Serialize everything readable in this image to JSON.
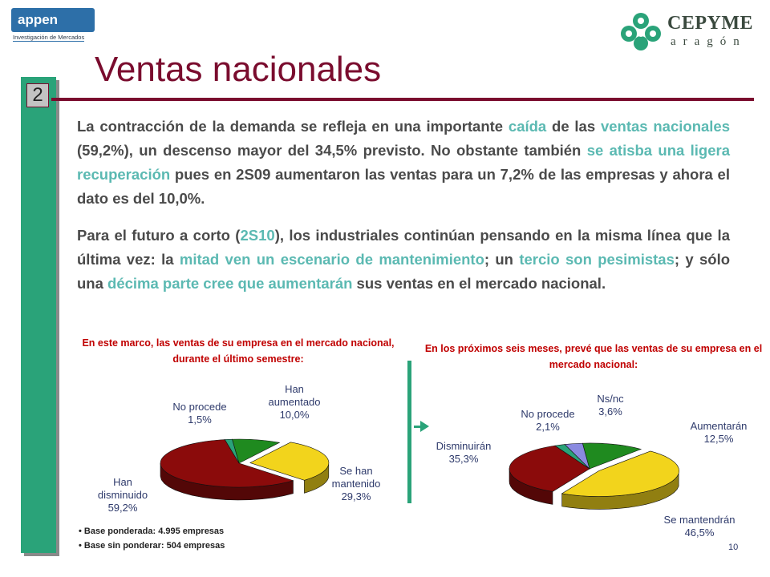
{
  "header": {
    "logo_left_brand": "appen",
    "logo_left_tagline": "Investigación de Mercados",
    "logo_right_name": "CEPYME",
    "logo_right_region": "aragón"
  },
  "slide": {
    "title": "Ventas nacionales",
    "section_number": "2",
    "page_number": "10"
  },
  "paragraph1": {
    "t1": "La contracción de la demanda se refleja en una importante ",
    "h1": "caída",
    "t2": " de las ",
    "h2": "ventas nacionales",
    "t3": " (59,2%), un descenso mayor del 34,5% previsto. No obstante también ",
    "h3": "se atisba una ligera recuperación",
    "t4": " pues en 2S09 aumentaron las ventas para un 7,2% de las empresas y ahora el dato es del 10,0%."
  },
  "paragraph2": {
    "t1": "Para el futuro a corto (",
    "h1": "2S10",
    "t2": "), los industriales continúan pensando en la misma línea que la última vez: la ",
    "h2": "mitad ven un escenario de mantenimiento",
    "t3": "; un ",
    "h3": "tercio son pesimistas",
    "t4": "; y sólo una ",
    "h4": "décima parte cree que aumentarán",
    "t5": " sus ventas en el mercado nacional."
  },
  "notes": {
    "base_weighted": "• Base ponderada: 4.995 empresas",
    "base_unweighted": "• Base sin ponderar: 504 empresas"
  },
  "chart_data": [
    {
      "type": "pie",
      "title": "En este marco, las ventas de su empresa en el mercado nacional, durante el último semestre:",
      "slices": [
        {
          "label_l1": "Han",
          "label_l2": "aumentado",
          "label_value": "10,0%",
          "value": 10.0,
          "color": "#1f8a1f"
        },
        {
          "label_l1": "Se han",
          "label_l2": "mantenido",
          "label_value": "29,3%",
          "value": 29.3,
          "color": "#f2d41c"
        },
        {
          "label_l1": "Han",
          "label_l2": "disminuido",
          "label_value": "59,2%",
          "value": 59.2,
          "color": "#8b0b0b"
        },
        {
          "label_l1": "No procede",
          "label_l2": "",
          "label_value": "1,5%",
          "value": 1.5,
          "color": "#2aa379"
        }
      ]
    },
    {
      "type": "pie",
      "title": "En los próximos seis meses, prevé que las ventas de su empresa en el mercado nacional:",
      "slices": [
        {
          "label_l1": "Aumentarán",
          "label_l2": "",
          "label_value": "12,5%",
          "value": 12.5,
          "color": "#1f8a1f"
        },
        {
          "label_l1": "Se mantendrán",
          "label_l2": "",
          "label_value": "46,5%",
          "value": 46.5,
          "color": "#f2d41c"
        },
        {
          "label_l1": "Disminuirán",
          "label_l2": "",
          "label_value": "35,3%",
          "value": 35.3,
          "color": "#8b0b0b"
        },
        {
          "label_l1": "No procede",
          "label_l2": "",
          "label_value": "2,1%",
          "value": 2.1,
          "color": "#2aa379"
        },
        {
          "label_l1": "Ns/nc",
          "label_l2": "",
          "label_value": "3,6%",
          "value": 3.6,
          "color": "#8a8ae0"
        }
      ]
    }
  ]
}
